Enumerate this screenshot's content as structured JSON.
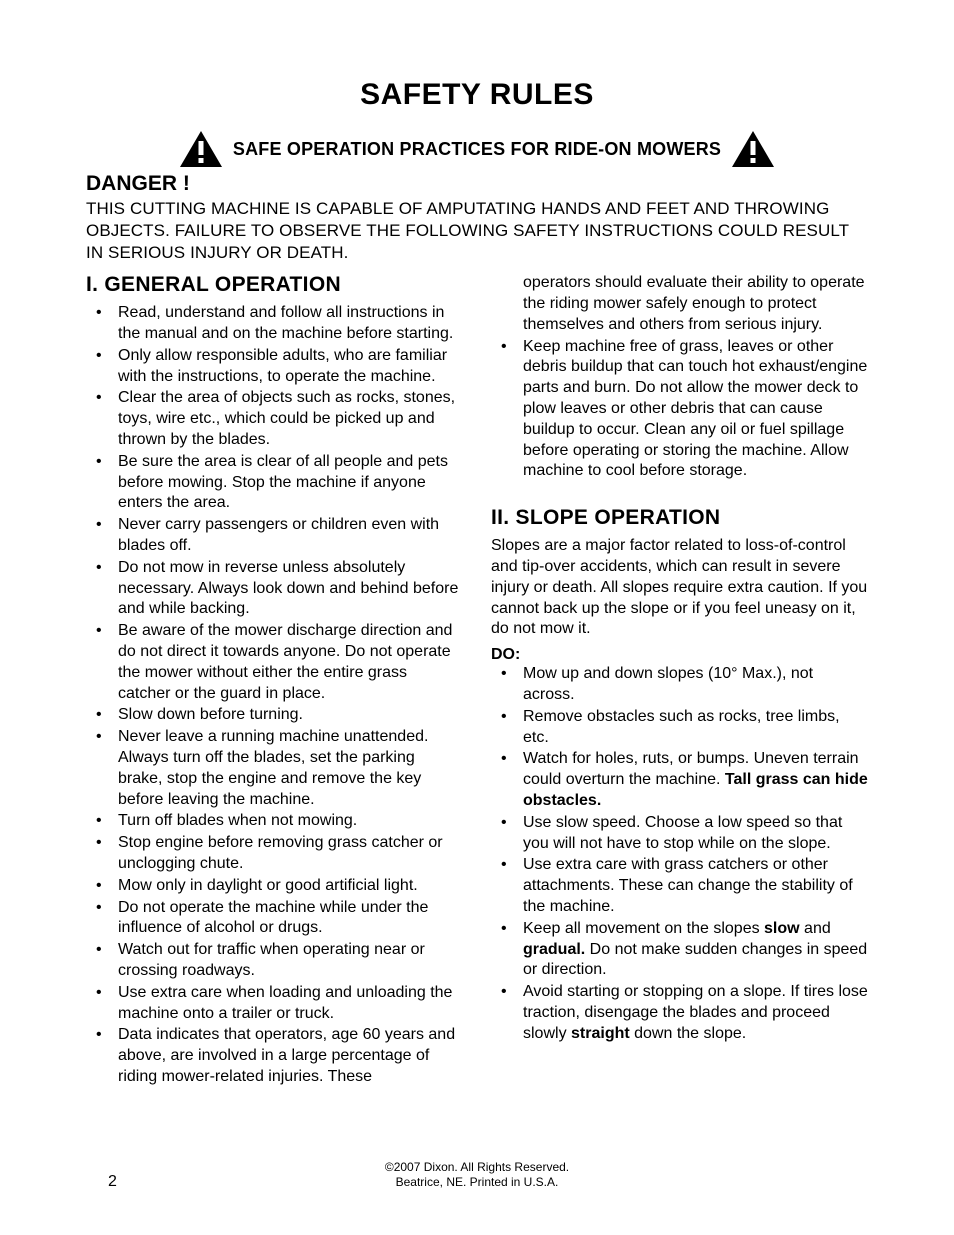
{
  "title": "SAFETY RULES",
  "subtitle": "SAFE OPERATION PRACTICES FOR RIDE-ON MOWERS",
  "danger_heading": "DANGER !",
  "danger_text": "THIS CUTTING MACHINE IS CAPABLE OF AMPUTATING HANDS AND FEET AND THROWING OBJECTS. FAILURE TO OBSERVE THE FOLLOWING SAFETY INSTRUCTIONS COULD RESULT IN SERIOUS INJURY OR DEATH.",
  "section1_heading": "I.  GENERAL  OPERATION",
  "section1_items": [
    "Read, understand and follow all instructions in the manual and on the machine before starting.",
    "Only allow responsible adults, who are familiar with the instructions, to operate the machine.",
    "Clear the area of objects such as rocks, stones, toys, wire etc., which could be picked up and thrown by the blades.",
    "Be sure the area is clear of all people and pets before mowing. Stop the machine if anyone enters the area.",
    "Never carry passengers or children even with blades off.",
    "Do not  mow in reverse unless absolutely necessary. Always look down and behind before and while backing.",
    "Be aware of the mower discharge direction and do not direct it towards anyone. Do not operate the mower without either the entire grass catcher or the guard in place.",
    "Slow down before turning.",
    "Never leave a running machine unattended. Always turn off the blades, set the parking brake, stop the engine and remove  the key before leaving the machine.",
    "Turn off blades when not mowing.",
    "Stop engine before removing grass catcher or unclogging chute.",
    "Mow only in daylight or good artificial light.",
    "Do not operate the machine while under the influence of alcohol or drugs.",
    "Watch out for traffic when operating near or crossing  roadways.",
    "Use extra care when loading and unloading the machine onto a trailer or truck.",
    "Data indicates that operators, age 60 years and above, are involved in a large percentage of riding mower-related injuries. These"
  ],
  "col2_continuation": "operators should evaluate their ability to operate the riding mower safely enough to protect themselves and others from serious injury.",
  "col2_item": "Keep machine free of grass, leaves or other debris buildup that can touch hot exhaust/engine parts and burn. Do not allow the mower deck to plow leaves or other debris that can cause buildup to occur. Clean any oil or fuel spillage before operating or storing the machine. Allow machine to cool before storage.",
  "section2_heading": "II.  SLOPE  OPERATION",
  "section2_intro": "Slopes are a major factor related to loss-of-control and tip-over accidents, which can result in severe injury or death. All slopes require extra caution. If you cannot back up the slope or if you feel uneasy on it, do not mow it.",
  "do_label": "DO:",
  "section2_items": [
    "Mow up and down slopes (10° Max.), not across.",
    "Remove obstacles such as rocks, tree limbs,  etc.",
    "Watch for holes, ruts, or bumps. Uneven terrain could overturn the machine. <b>Tall grass can hide obstacles.</b>",
    "Use slow speed. Choose a low speed so that you will not have to stop while on the slope.",
    "Use extra care with grass catchers or other attachments. These can change the stability of the machine.",
    "Keep all movement on the slopes <b>slow</b> and <b>gradual.</b> Do not make sudden changes in speed or direction.",
    "Avoid starting or stopping on a slope. If tires lose traction, disengage the blades and proceed slowly <b>straight</b> down the slope."
  ],
  "footer_line1": "©2007 Dixon.  All Rights Reserved.",
  "footer_line2": "Beatrice, NE. Printed in U.S.A.",
  "page_number": "2",
  "icon_fill": "#000000",
  "icon_bang": "#ffffff"
}
